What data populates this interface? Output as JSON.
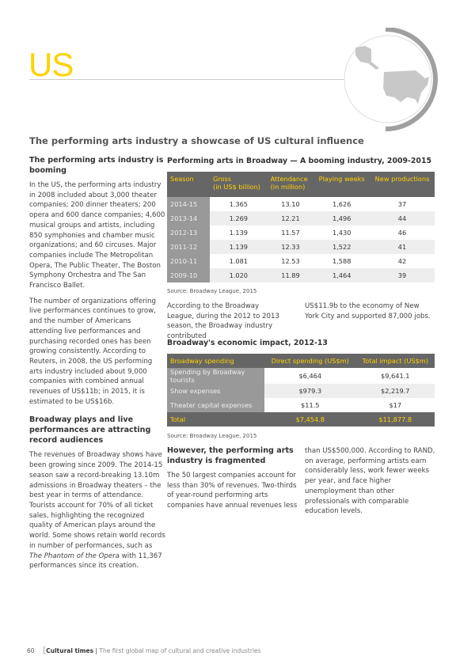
{
  "header": {
    "country": "US",
    "subtitle": "The performing arts industry a showcase of US cultural influence",
    "map_icon": "us-map-icon"
  },
  "left": {
    "h1": "The performing arts industry is booming",
    "p1": "In the US, the performing arts industry in 2008 included about 3,000 theater companies; 200 dinner theaters; 200 opera and 600 dance companies; 4,600 musical groups and artists, including 850 symphonies and chamber music organizations; and 60 circuses. Major companies include The Metropolitan Opera, The Public Theater, The Boston Symphony Orchestra and The San Francisco Ballet.",
    "p2": "The number of organizations offering live performances continues to grow, and the number of Americans attending live performances and purchasing recorded ones has been growing consistently. According to Reuters, in 2008, the US performing arts industry included about 9,000 companies with combined annual revenues of US$11b; in 2015, it is estimated to be US$16b.",
    "h2": "Broadway plays and live performances are attracting record audiences",
    "p3a": "The revenues of Broadway shows have been growing since 2009. The 2014-15 season saw a record-breaking 13.10m admissions in Broadway theaters – the best year in terms of attendance. Tourists account for 70% of all ticket sales, highlighting the recognized quality of American plays around the world. Some shows retain world records in number of performances, such as ",
    "p3i1": "The Phantom of the Opera",
    "p3b": " with 11,367 performances since its creation."
  },
  "table1": {
    "title": "Performing arts in Broadway — A booming industry, 2009-2015",
    "headers": [
      "Season",
      "Gross\n(in US$ billion)",
      "Attendance\n(in million)",
      "Playing weeks",
      "New productions"
    ],
    "rows": [
      [
        "2014-15",
        "1.365",
        "13.10",
        "1,626",
        "37"
      ],
      [
        "2013-14",
        "1.269",
        "12.21",
        "1,496",
        "44"
      ],
      [
        "2012-13",
        "1.139",
        "11.57",
        "1,430",
        "46"
      ],
      [
        "2011-12",
        "1.139",
        "12.33",
        "1,522",
        "41"
      ],
      [
        "2010-11",
        "1.081",
        "12.53",
        "1,588",
        "42"
      ],
      [
        "2009-10",
        "1.020",
        "11.89",
        "1,464",
        "39"
      ]
    ],
    "source": "Source: Broadway League, 2015"
  },
  "mid_text": {
    "a": "According to the Broadway League, during the 2012 to 2013 season, the Broadway industry contributed",
    "b": "US$11.9b to the economy of New York City and supported 87,000 jobs."
  },
  "table2": {
    "title": "Broadway's economic impact, 2012-13",
    "headers": [
      "Broadway spending",
      "Direct spending (US$m)",
      "Total impact (US$m)"
    ],
    "rows": [
      [
        "Spending by Broadway tourists",
        "$6,464",
        "$9,641.1"
      ],
      [
        "Show expenses",
        "$979.3",
        "$2,219.7"
      ],
      [
        "Theater capital expenses",
        "$11.5",
        "$17"
      ]
    ],
    "total": [
      "Total",
      "$7,454.8",
      "$11,877.8"
    ],
    "source": "Source: Broadway League, 2015"
  },
  "bottom": {
    "heading": "However, the performing arts industry is fragmented",
    "p1": "The 50 largest companies account for less than 30% of revenues. Two-thirds of year-round performing arts companies have annual revenues less",
    "p2": "than US$500,000. According to RAND, on average, performing artists earn considerably less, work fewer weeks per year, and face higher unemployment than other professionals with comparable education levels."
  },
  "footer": {
    "page": "60",
    "brand": "Cultural times",
    "tagline": "The first global map of cultural and creative industries"
  }
}
